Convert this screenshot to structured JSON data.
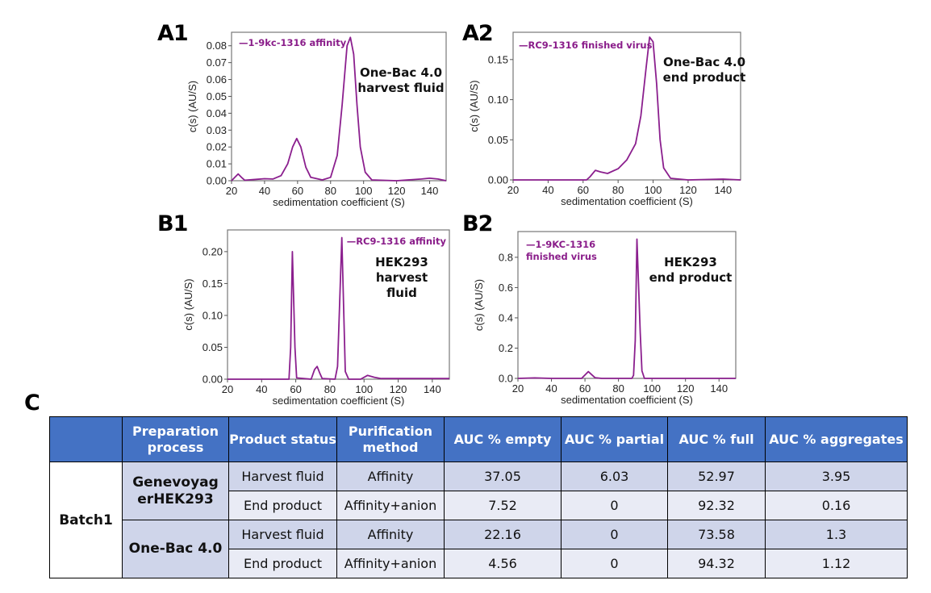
{
  "colors": {
    "line": "#8b1f8e",
    "legend": "#8a1d8a",
    "header_bg": "#4472c4",
    "row_dark": "#cfd5ea",
    "row_light": "#e9ebf5"
  },
  "chart_data": [
    {
      "panel": "A1",
      "type": "line",
      "legend": "—1-9kc-1316 affinity",
      "annotation": [
        "One-Bac 4.0",
        "harvest fluid"
      ],
      "xlabel": "sedimentation coefficient (S)",
      "ylabel": "c(s) (AU/S)",
      "xlim": [
        20,
        150
      ],
      "ylim": [
        0,
        0.088
      ],
      "xticks": [
        20,
        40,
        60,
        80,
        100,
        120,
        140
      ],
      "yticks": [
        "0.00",
        "0.01",
        "0.02",
        "0.03",
        "0.04",
        "0.05",
        "0.06",
        "0.07",
        "0.08"
      ],
      "x": [
        20,
        22,
        24,
        26,
        28,
        35,
        40,
        45,
        50,
        54,
        57,
        59.5,
        62,
        65,
        68,
        75,
        80,
        84,
        87,
        90,
        92,
        94,
        96,
        98,
        101,
        105,
        120,
        135,
        140,
        145,
        150
      ],
      "y": [
        0,
        0.002,
        0.004,
        0.002,
        0.0003,
        0.0008,
        0.0012,
        0.001,
        0.003,
        0.01,
        0.02,
        0.025,
        0.02,
        0.008,
        0.002,
        0.0005,
        0.002,
        0.015,
        0.045,
        0.08,
        0.085,
        0.075,
        0.045,
        0.02,
        0.005,
        0.0005,
        0,
        0.001,
        0.0015,
        0.001,
        0
      ]
    },
    {
      "panel": "A2",
      "type": "line",
      "legend": "—RC9-1316 finished virus",
      "annotation": [
        "One-Bac 4.0",
        "end product"
      ],
      "xlabel": "sedimentation coefficient (S)",
      "ylabel": "c(s) (AU/S)",
      "xlim": [
        20,
        150
      ],
      "ylim": [
        0,
        0.184
      ],
      "xticks": [
        20,
        40,
        60,
        80,
        100,
        120,
        140
      ],
      "yticks": [
        "0.00",
        "0.05",
        "0.10",
        "0.15"
      ],
      "x": [
        20,
        62,
        64,
        67,
        70,
        74,
        80,
        85,
        90,
        93,
        96,
        98,
        100,
        102,
        104,
        106,
        110,
        120,
        140,
        150
      ],
      "y": [
        0,
        0,
        0.004,
        0.012,
        0.01,
        0.008,
        0.014,
        0.025,
        0.045,
        0.08,
        0.14,
        0.178,
        0.172,
        0.12,
        0.05,
        0.015,
        0.002,
        0,
        0.001,
        0
      ]
    },
    {
      "panel": "B1",
      "type": "line",
      "legend": "—RC9-1316 affinity",
      "annotation": [
        "HEK293",
        "harvest",
        "fluid"
      ],
      "xlabel": "sedimentation coefficient (S)",
      "ylabel": "c(s) (AU/S)",
      "xlim": [
        20,
        150
      ],
      "ylim": [
        0,
        0.234
      ],
      "xticks": [
        20,
        40,
        60,
        80,
        100,
        120,
        140
      ],
      "yticks": [
        "0.00",
        "0.05",
        "0.10",
        "0.15",
        "0.20"
      ],
      "x": [
        20,
        56,
        57,
        58,
        59.5,
        60.5,
        69,
        71,
        72.5,
        74,
        75.5,
        83,
        84.5,
        87,
        89,
        91,
        98,
        102,
        106,
        110,
        150
      ],
      "y": [
        0,
        0,
        0.05,
        0.2,
        0.05,
        0.002,
        0,
        0.015,
        0.02,
        0.01,
        0.001,
        0,
        0.02,
        0.222,
        0.012,
        0,
        0,
        0.006,
        0.003,
        0.001,
        0.001
      ]
    },
    {
      "panel": "B2",
      "type": "line",
      "legend": [
        "—1-9KC-1316",
        "finished virus"
      ],
      "annotation": [
        "HEK293",
        "end product"
      ],
      "xlabel": "sedimentation coefficient (S)",
      "ylabel": "c(s) (AU/S)",
      "xlim": [
        20,
        150
      ],
      "ylim": [
        0,
        0.97
      ],
      "xticks": [
        20,
        40,
        60,
        80,
        100,
        120,
        140
      ],
      "yticks": [
        "0.0",
        "0.2",
        "0.4",
        "0.6",
        "0.8"
      ],
      "x": [
        20,
        30,
        40,
        58,
        62,
        66,
        70,
        88,
        89,
        90,
        91,
        93,
        94,
        95.5,
        150
      ],
      "y": [
        0,
        0.003,
        0,
        0,
        0.045,
        0.005,
        0,
        0,
        0.02,
        0.25,
        0.92,
        0.3,
        0.05,
        0,
        0
      ]
    }
  ],
  "table": {
    "panel": "C",
    "headers": [
      "",
      "Preparation process",
      "Product status",
      "Purification method",
      "AUC % empty",
      "AUC % partial",
      "AUC % full",
      "AUC % aggregates"
    ],
    "batch": "Batch1",
    "groups": [
      {
        "process": "Genevoyag erHEK293",
        "rows": [
          {
            "status": "Harvest fluid",
            "method": "Affinity",
            "empty": "37.05",
            "partial": "6.03",
            "full": "52.97",
            "aggregates": "3.95"
          },
          {
            "status": "End product",
            "method": "Affinity+anion",
            "empty": "7.52",
            "partial": "0",
            "full": "92.32",
            "aggregates": "0.16"
          }
        ]
      },
      {
        "process": "One-Bac 4.0",
        "rows": [
          {
            "status": "Harvest fluid",
            "method": "Affinity",
            "empty": "22.16",
            "partial": "0",
            "full": "73.58",
            "aggregates": "1.3"
          },
          {
            "status": "End product",
            "method": "Affinity+anion",
            "empty": "4.56",
            "partial": "0",
            "full": "94.32",
            "aggregates": "1.12"
          }
        ]
      }
    ]
  }
}
